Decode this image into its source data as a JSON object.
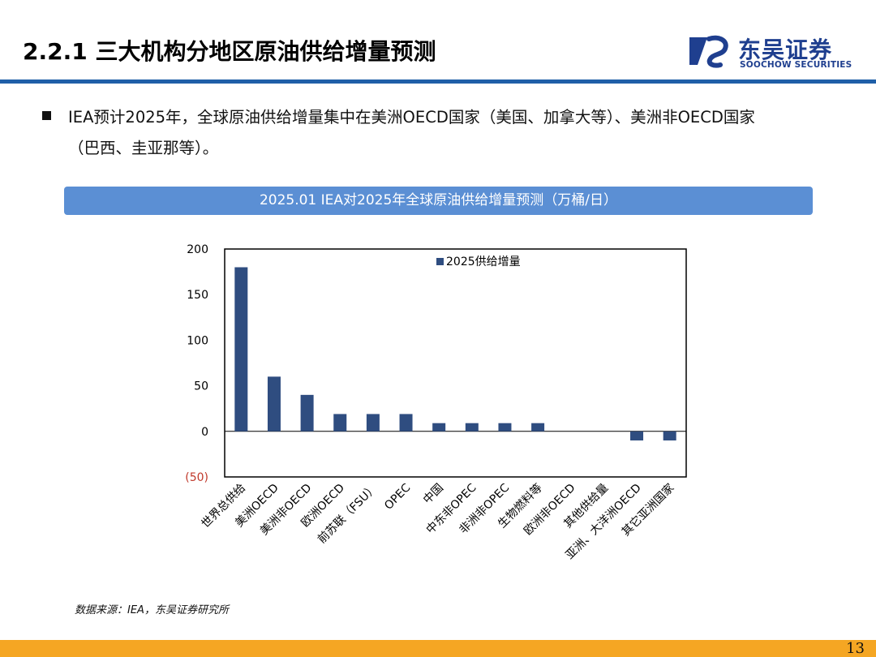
{
  "header": {
    "title": "2.2.1 三大机构分地区原油供给增量预测",
    "logo_cn": "东吴证券",
    "logo_en": "SOOCHOW SECURITIES"
  },
  "bullet": {
    "line1": "IEA预计2025年，全球原油供给增量集中在美洲OECD国家（美国、加拿大等）、美洲非OECD国家",
    "line2": "（巴西、圭亚那等）。"
  },
  "banner_title": "2025.01 IEA对2025年全球原油供给增量预测（万桶/日）",
  "chart_data": {
    "type": "bar",
    "categories": [
      "世界总供给",
      "美洲OECD",
      "美洲非OECD",
      "欧洲OECD",
      "前苏联（FSU）",
      "OPEC",
      "中国",
      "中东非OPEC",
      "非洲非OPEC",
      "生物燃料等",
      "欧洲非OECD",
      "其他供给量",
      "亚洲、大洋洲OECD",
      "其它亚洲国家"
    ],
    "series": [
      {
        "name": "2025供给增量",
        "values": [
          180,
          60,
          40,
          19,
          19,
          19,
          9,
          9,
          9,
          9,
          0,
          0,
          -10,
          -10
        ],
        "color": "#2f4d80"
      }
    ],
    "ylim": [
      -50,
      200
    ],
    "yticks": [
      200,
      150,
      100,
      50,
      0,
      -50
    ],
    "ytick_labels": [
      "200",
      "150",
      "100",
      "50",
      "0",
      "(50)"
    ],
    "negative_label_color": "#c0392b",
    "legend_position": "top-center",
    "grid": false
  },
  "source": "数据来源：IEA，东吴证券研究所",
  "page_number": "13"
}
